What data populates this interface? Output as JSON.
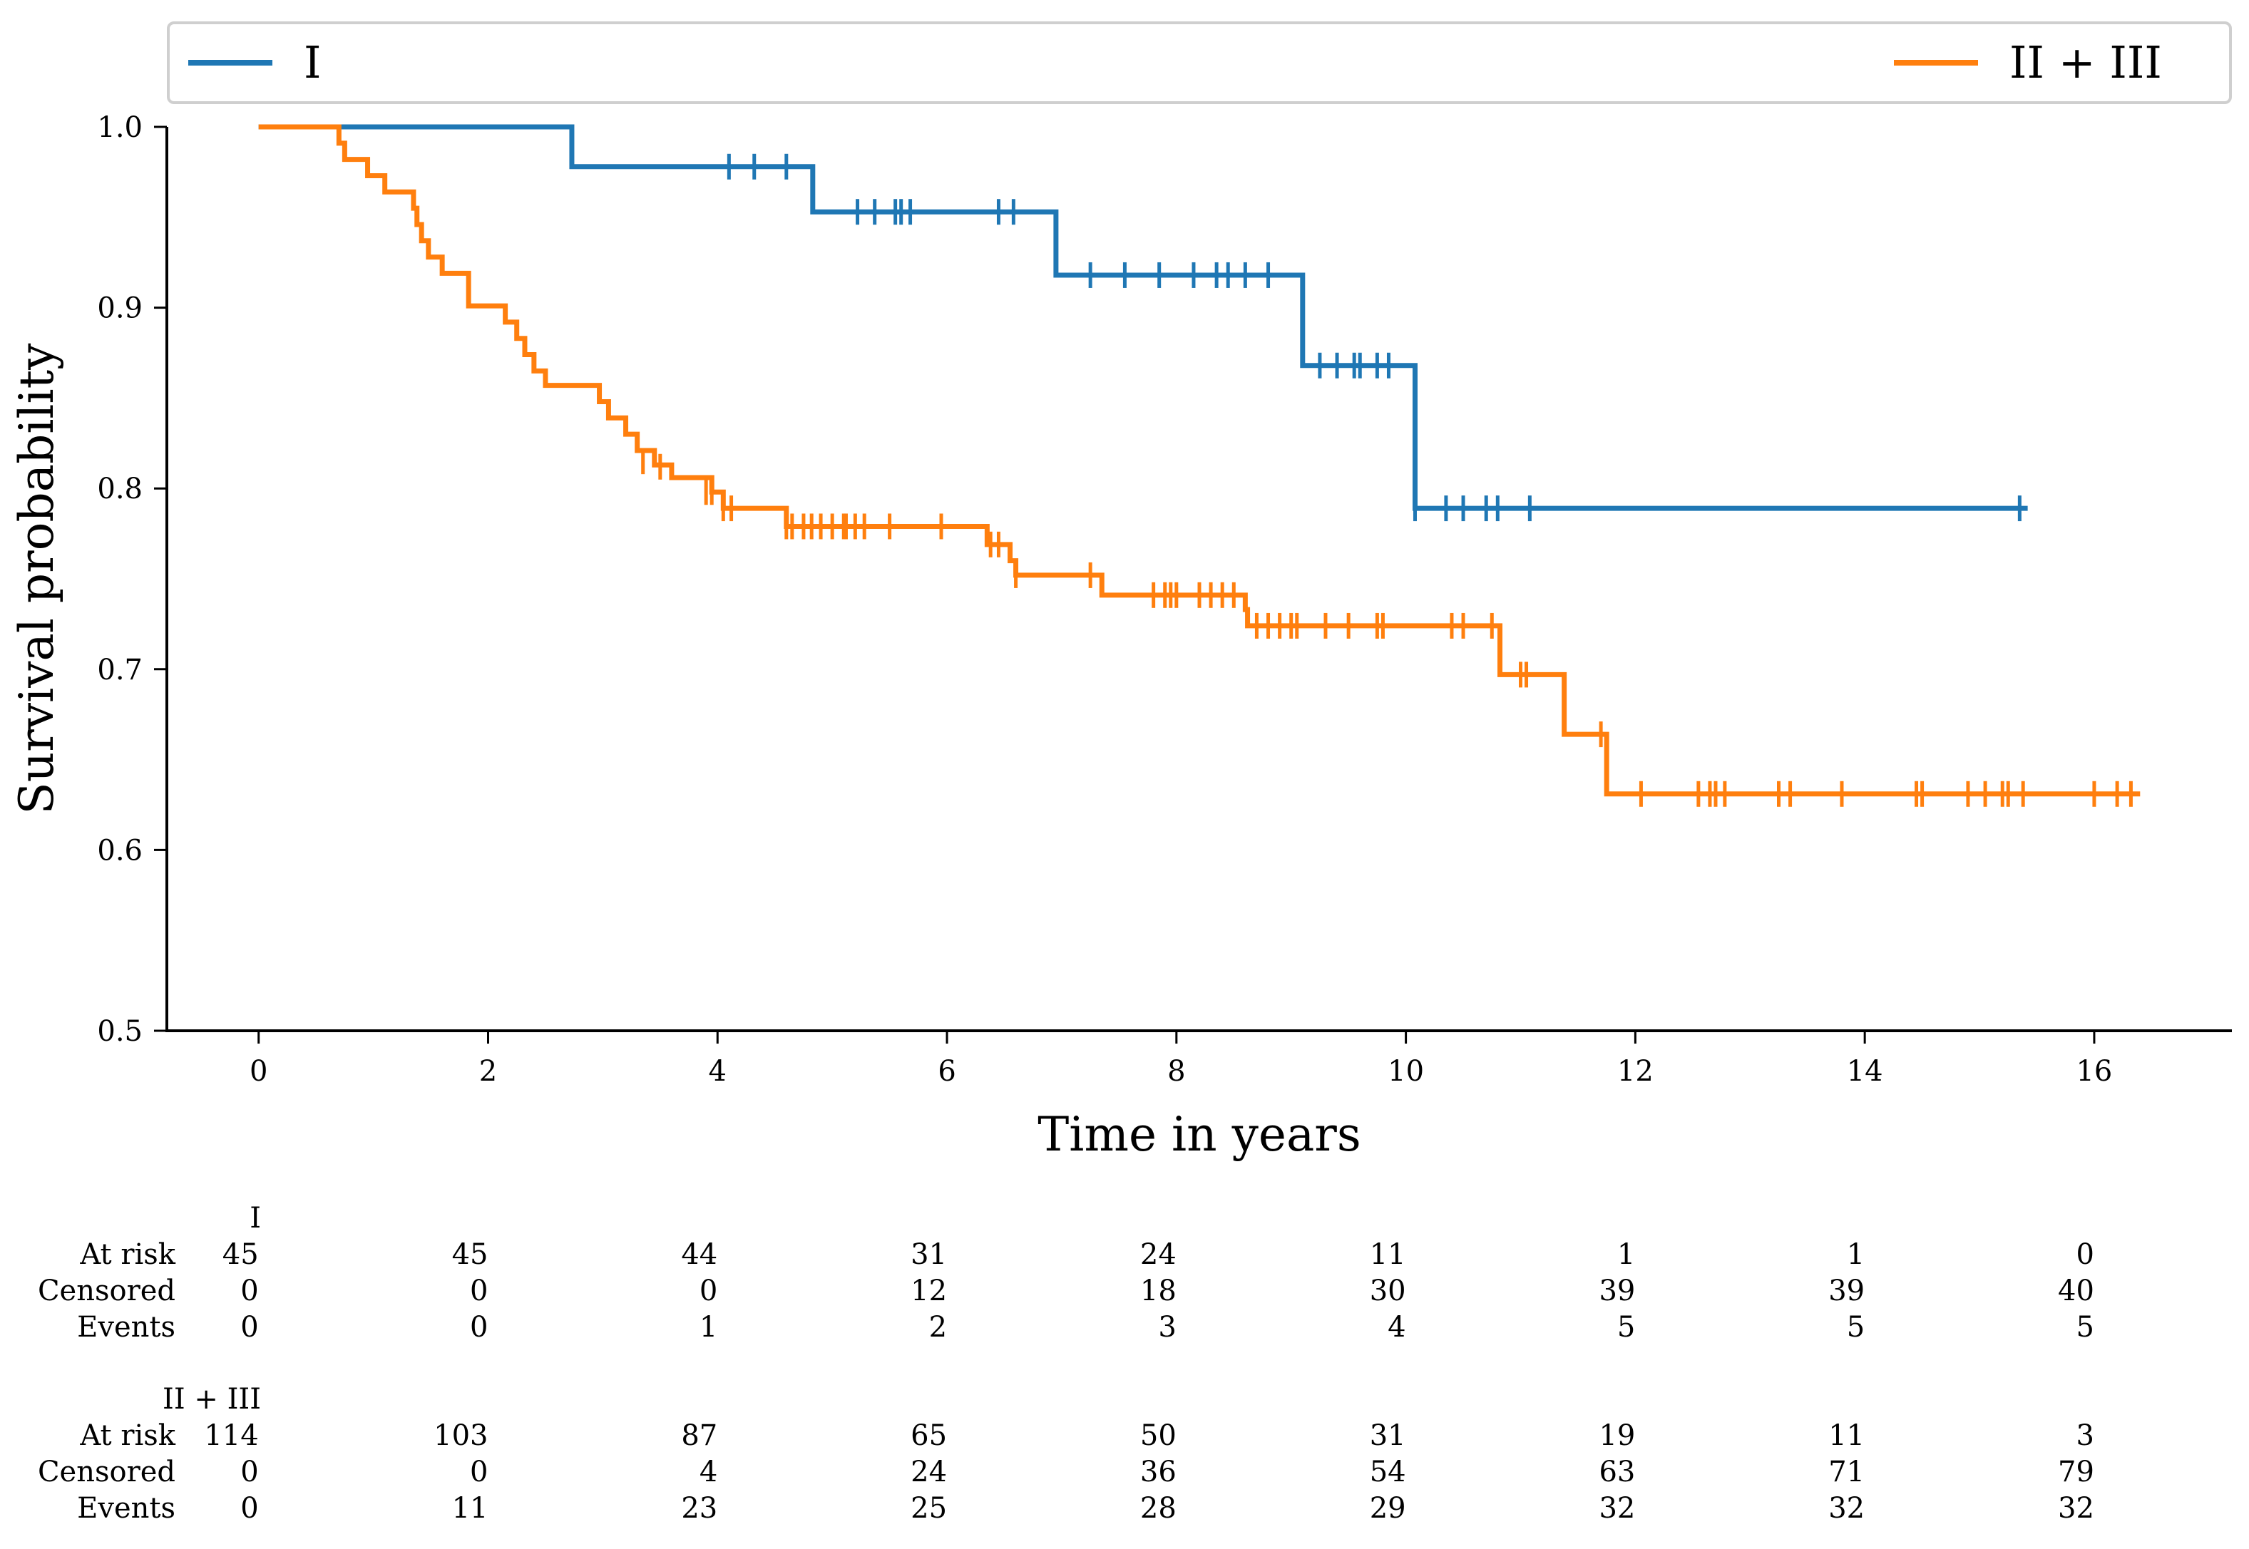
{
  "chart_data": {
    "type": "line",
    "subtype": "kaplan-meier",
    "title": "",
    "xlabel": "Time in years",
    "ylabel": "Survival probability",
    "xlim": [
      -0.8,
      17.2
    ],
    "ylim": [
      0.5,
      1.0
    ],
    "xticks": [
      0,
      2,
      4,
      6,
      8,
      10,
      12,
      14,
      16
    ],
    "yticks": [
      0.5,
      0.6,
      0.7,
      0.8,
      0.9,
      1.0
    ],
    "ytick_labels": [
      "0.5",
      "0.6",
      "0.7",
      "0.8",
      "0.9",
      "1.0"
    ],
    "legend": {
      "placement": "top, spanning full width",
      "entries": [
        "I",
        "II + III"
      ]
    },
    "series": [
      {
        "name": "I",
        "color": "#1f77b4",
        "steps": [
          [
            0,
            1.0
          ],
          [
            2.73,
            0.978
          ],
          [
            4.83,
            0.953
          ],
          [
            6.95,
            0.918
          ],
          [
            9.1,
            0.868
          ],
          [
            10.08,
            0.789
          ],
          [
            15.42,
            0.789
          ]
        ],
        "censored": [
          [
            4.1,
            0.978
          ],
          [
            4.32,
            0.978
          ],
          [
            4.6,
            0.978
          ],
          [
            5.22,
            0.953
          ],
          [
            5.37,
            0.953
          ],
          [
            5.55,
            0.953
          ],
          [
            5.6,
            0.953
          ],
          [
            5.68,
            0.953
          ],
          [
            6.45,
            0.953
          ],
          [
            6.58,
            0.953
          ],
          [
            7.25,
            0.918
          ],
          [
            7.55,
            0.918
          ],
          [
            7.85,
            0.918
          ],
          [
            8.15,
            0.918
          ],
          [
            8.35,
            0.918
          ],
          [
            8.45,
            0.918
          ],
          [
            8.6,
            0.918
          ],
          [
            8.8,
            0.918
          ],
          [
            9.25,
            0.868
          ],
          [
            9.4,
            0.868
          ],
          [
            9.55,
            0.868
          ],
          [
            9.6,
            0.868
          ],
          [
            9.75,
            0.868
          ],
          [
            9.85,
            0.868
          ],
          [
            10.08,
            0.789
          ],
          [
            10.35,
            0.789
          ],
          [
            10.5,
            0.789
          ],
          [
            10.7,
            0.789
          ],
          [
            10.8,
            0.789
          ],
          [
            11.08,
            0.789
          ],
          [
            15.35,
            0.789
          ]
        ]
      },
      {
        "name": "II + III",
        "color": "#ff7f0e",
        "steps": [
          [
            0,
            1.0
          ],
          [
            0.7,
            0.991
          ],
          [
            0.75,
            0.982
          ],
          [
            0.95,
            0.973
          ],
          [
            1.1,
            0.964
          ],
          [
            1.35,
            0.955
          ],
          [
            1.38,
            0.946
          ],
          [
            1.42,
            0.937
          ],
          [
            1.48,
            0.928
          ],
          [
            1.6,
            0.919
          ],
          [
            1.83,
            0.901
          ],
          [
            2.15,
            0.892
          ],
          [
            2.25,
            0.883
          ],
          [
            2.32,
            0.874
          ],
          [
            2.4,
            0.865
          ],
          [
            2.5,
            0.857
          ],
          [
            2.97,
            0.848
          ],
          [
            3.05,
            0.839
          ],
          [
            3.2,
            0.83
          ],
          [
            3.3,
            0.821
          ],
          [
            3.45,
            0.813
          ],
          [
            3.6,
            0.806
          ],
          [
            3.95,
            0.798
          ],
          [
            4.05,
            0.789
          ],
          [
            4.6,
            0.779
          ],
          [
            6.35,
            0.769
          ],
          [
            6.55,
            0.76
          ],
          [
            6.6,
            0.752
          ],
          [
            7.35,
            0.741
          ],
          [
            8.6,
            0.733
          ],
          [
            8.62,
            0.724
          ],
          [
            10.82,
            0.697
          ],
          [
            11.38,
            0.664
          ],
          [
            11.75,
            0.631
          ],
          [
            16.4,
            0.631
          ]
        ],
        "censored": [
          [
            3.35,
            0.815
          ],
          [
            3.5,
            0.812
          ],
          [
            3.9,
            0.798
          ],
          [
            3.95,
            0.798
          ],
          [
            4.05,
            0.789
          ],
          [
            4.12,
            0.789
          ],
          [
            4.6,
            0.779
          ],
          [
            4.65,
            0.779
          ],
          [
            4.75,
            0.779
          ],
          [
            4.82,
            0.779
          ],
          [
            4.9,
            0.779
          ],
          [
            5.0,
            0.779
          ],
          [
            5.1,
            0.779
          ],
          [
            5.12,
            0.779
          ],
          [
            5.2,
            0.779
          ],
          [
            5.28,
            0.779
          ],
          [
            5.5,
            0.779
          ],
          [
            5.95,
            0.779
          ],
          [
            6.38,
            0.769
          ],
          [
            6.45,
            0.769
          ],
          [
            6.6,
            0.752
          ],
          [
            7.25,
            0.752
          ],
          [
            7.8,
            0.741
          ],
          [
            7.9,
            0.741
          ],
          [
            7.95,
            0.741
          ],
          [
            8.0,
            0.741
          ],
          [
            8.2,
            0.741
          ],
          [
            8.3,
            0.741
          ],
          [
            8.4,
            0.741
          ],
          [
            8.5,
            0.741
          ],
          [
            8.7,
            0.724
          ],
          [
            8.8,
            0.724
          ],
          [
            8.9,
            0.724
          ],
          [
            9.0,
            0.724
          ],
          [
            9.05,
            0.724
          ],
          [
            9.3,
            0.724
          ],
          [
            9.5,
            0.724
          ],
          [
            9.75,
            0.724
          ],
          [
            9.8,
            0.724
          ],
          [
            10.4,
            0.724
          ],
          [
            10.5,
            0.724
          ],
          [
            10.75,
            0.724
          ],
          [
            11.0,
            0.697
          ],
          [
            11.05,
            0.697
          ],
          [
            11.7,
            0.664
          ],
          [
            12.05,
            0.631
          ],
          [
            12.55,
            0.631
          ],
          [
            12.65,
            0.631
          ],
          [
            12.7,
            0.631
          ],
          [
            12.78,
            0.631
          ],
          [
            13.25,
            0.631
          ],
          [
            13.35,
            0.631
          ],
          [
            13.8,
            0.631
          ],
          [
            14.45,
            0.631
          ],
          [
            14.5,
            0.631
          ],
          [
            14.9,
            0.631
          ],
          [
            15.05,
            0.631
          ],
          [
            15.2,
            0.631
          ],
          [
            15.25,
            0.631
          ],
          [
            15.38,
            0.631
          ],
          [
            16.0,
            0.631
          ],
          [
            16.2,
            0.631
          ],
          [
            16.32,
            0.631
          ]
        ]
      }
    ]
  },
  "risk_table": {
    "times": [
      0,
      2,
      4,
      6,
      8,
      10,
      12,
      14,
      16
    ],
    "groups": [
      {
        "name": "I",
        "rows": [
          {
            "label": "At risk",
            "values": [
              "45",
              "45",
              "44",
              "31",
              "24",
              "11",
              "1",
              "1",
              "0"
            ]
          },
          {
            "label": "Censored",
            "values": [
              "0",
              "0",
              "0",
              "12",
              "18",
              "30",
              "39",
              "39",
              "40"
            ]
          },
          {
            "label": "Events",
            "values": [
              "0",
              "0",
              "1",
              "2",
              "3",
              "4",
              "5",
              "5",
              "5"
            ]
          }
        ]
      },
      {
        "name": "II + III",
        "rows": [
          {
            "label": "At risk",
            "values": [
              "114",
              "103",
              "87",
              "65",
              "50",
              "31",
              "19",
              "11",
              "3"
            ]
          },
          {
            "label": "Censored",
            "values": [
              "0",
              "0",
              "4",
              "24",
              "36",
              "54",
              "63",
              "71",
              "79"
            ]
          },
          {
            "label": "Events",
            "values": [
              "0",
              "11",
              "23",
              "25",
              "28",
              "29",
              "32",
              "32",
              "32"
            ]
          }
        ]
      }
    ]
  }
}
